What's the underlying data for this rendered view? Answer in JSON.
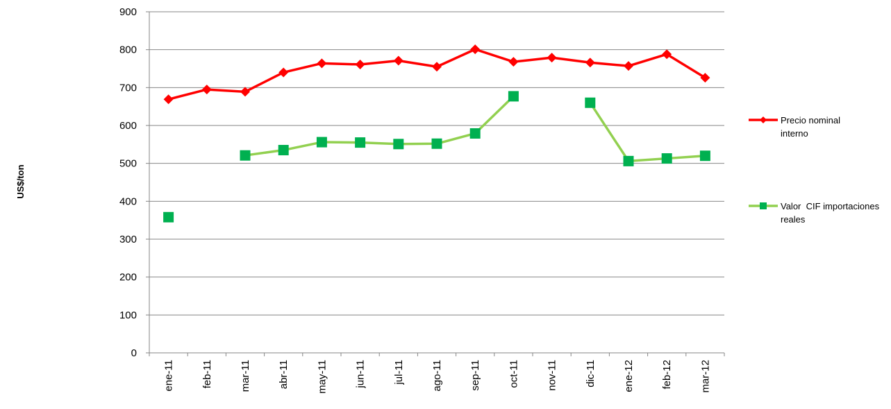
{
  "chart_data": {
    "type": "line",
    "y_label": "US$/ton",
    "categories": [
      "ene-11",
      "feb-11",
      "mar-11",
      "abr-11",
      "may-11",
      "jun-11",
      "jul-11",
      "ago-11",
      "sep-11",
      "oct-11",
      "nov-11",
      "dic-11",
      "ene-12",
      "feb-12",
      "mar-12"
    ],
    "series": [
      {
        "name": "Precio nominal interno",
        "color": "#ff0000",
        "marker": "diamond",
        "values": [
          669,
          695,
          689,
          740,
          764,
          761,
          771,
          755,
          801,
          768,
          779,
          766,
          757,
          788,
          726
        ]
      },
      {
        "name": "Valor  CIF importaciones reales",
        "color": "#92d050",
        "marker_color": "#00b050",
        "marker": "square",
        "values": [
          358,
          null,
          521,
          535,
          556,
          555,
          551,
          552,
          579,
          677,
          null,
          660,
          506,
          513,
          520
        ]
      }
    ],
    "ylim": [
      0,
      900
    ],
    "yticks": [
      0,
      100,
      200,
      300,
      400,
      500,
      600,
      700,
      800,
      900
    ],
    "grid": true,
    "legend": "right"
  }
}
